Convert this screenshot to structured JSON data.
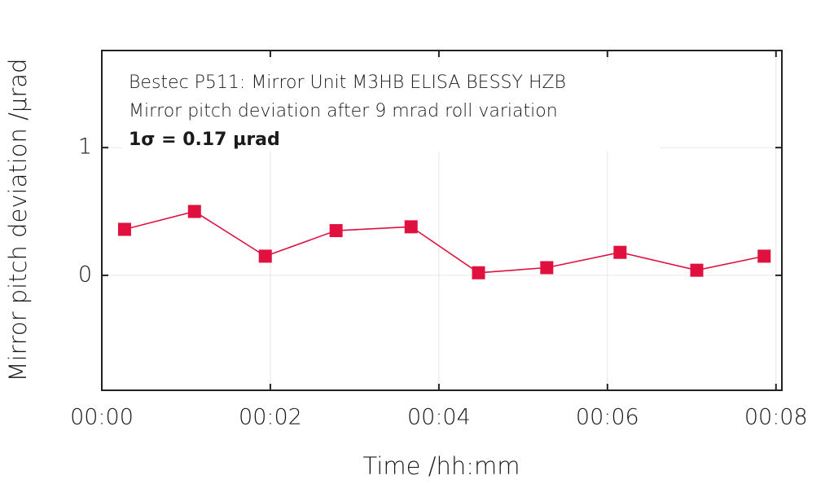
{
  "chart_data": {
    "type": "line",
    "annotations": [
      "Bestec P511: Mirror Unit M3HB ELISA BESSY HZB",
      "Mirror pitch deviation after 9 mrad roll variation",
      "1σ = 0.17 µrad"
    ],
    "x_label": "Time /hh:mm",
    "y_label": "Mirror pitch deviation /µrad",
    "x": [
      0.27,
      1.1,
      1.94,
      2.78,
      3.67,
      4.47,
      5.28,
      6.15,
      7.06,
      7.86
    ],
    "series": [
      {
        "color": "#e0103f",
        "values": [
          0.36,
          0.5,
          0.15,
          0.35,
          0.38,
          0.02,
          0.06,
          0.18,
          0.04,
          0.15
        ]
      }
    ],
    "xlim": [
      0,
      8.07
    ],
    "xticks": [
      {
        "value": 0,
        "label": "00:00"
      },
      {
        "value": 2,
        "label": "00:02"
      },
      {
        "value": 4,
        "label": "00:04"
      },
      {
        "value": 6,
        "label": "00:06"
      },
      {
        "value": 8,
        "label": "00:08"
      }
    ],
    "ylim": [
      -0.9,
      1.76
    ],
    "yticks": [
      0,
      1
    ],
    "grid": true
  }
}
